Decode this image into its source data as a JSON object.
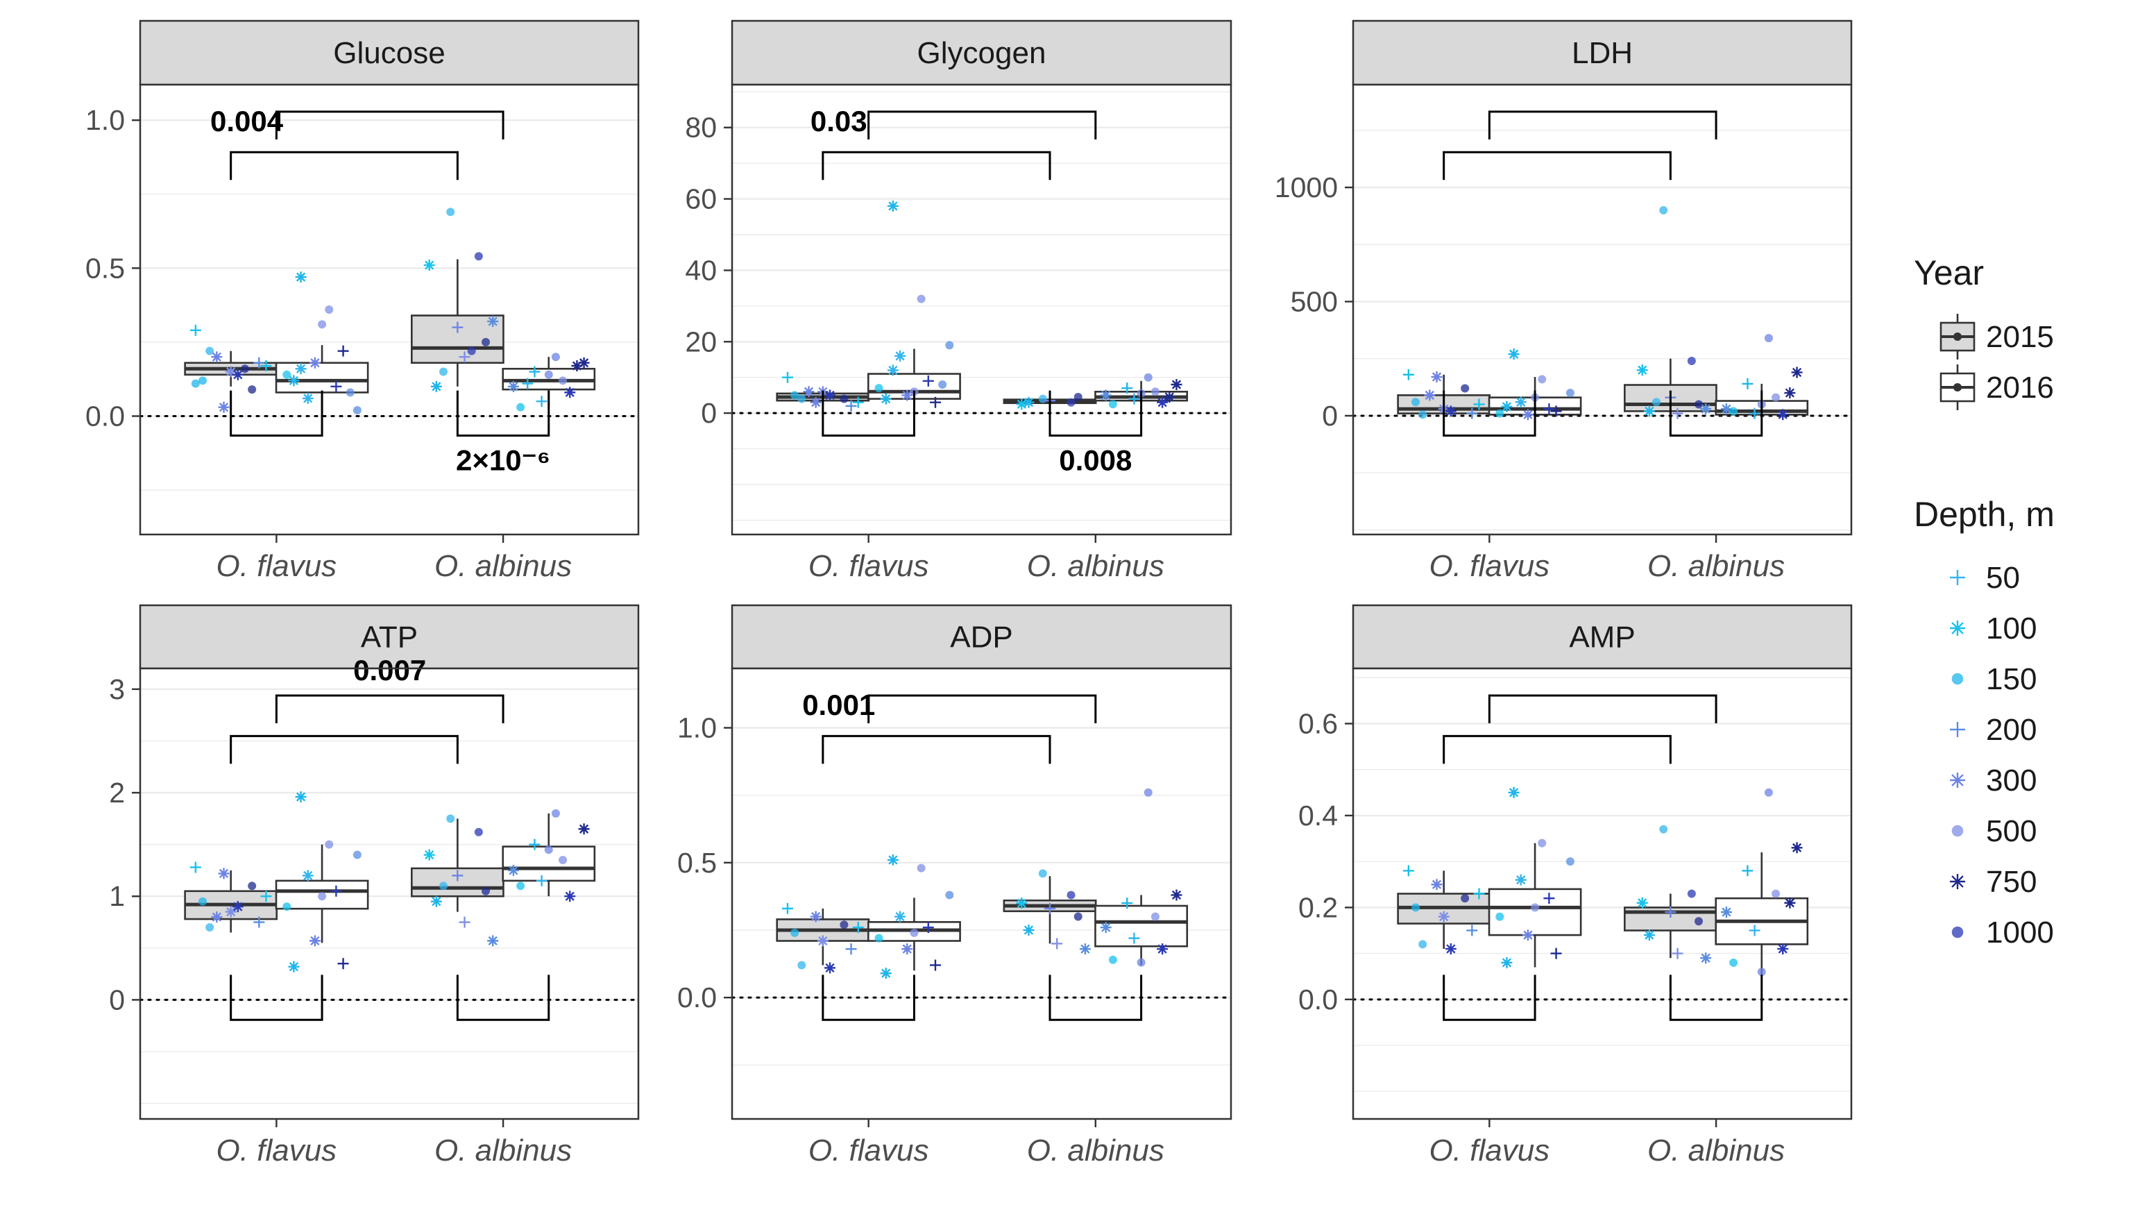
{
  "chart_data": [
    {
      "type": "box",
      "title": "Glucose",
      "categories": [
        "O. flavus",
        "O. albinus"
      ],
      "yticks": [
        0.0,
        0.5,
        1.0
      ],
      "ylim": [
        -0.4,
        1.12
      ],
      "zero_line": 0,
      "boxes": [
        {
          "category": "O. flavus",
          "year": "2015",
          "q1": 0.14,
          "median": 0.16,
          "q3": 0.18,
          "lower": 0.1,
          "upper": 0.22
        },
        {
          "category": "O. flavus",
          "year": "2016",
          "q1": 0.08,
          "median": 0.12,
          "q3": 0.18,
          "lower": 0.02,
          "upper": 0.24
        },
        {
          "category": "O. albinus",
          "year": "2015",
          "q1": 0.18,
          "median": 0.23,
          "q3": 0.34,
          "lower": 0.1,
          "upper": 0.53
        },
        {
          "category": "O. albinus",
          "year": "2016",
          "q1": 0.09,
          "median": 0.12,
          "q3": 0.16,
          "lower": 0.03,
          "upper": 0.2
        }
      ],
      "points": [
        {
          "category": "O. flavus",
          "year": "2015",
          "values": [
            0.29,
            0.03,
            0.09,
            0.12,
            0.15,
            0.18,
            0.22,
            0.14,
            0.17,
            0.2,
            0.16,
            0.11
          ]
        },
        {
          "category": "O. flavus",
          "year": "2016",
          "values": [
            0.47,
            0.36,
            0.02,
            0.06,
            0.1,
            0.14,
            0.18,
            0.22,
            0.12,
            0.31,
            0.08,
            0.16
          ]
        },
        {
          "category": "O. albinus",
          "year": "2015",
          "values": [
            0.69,
            0.54,
            0.51,
            0.3,
            0.25,
            0.1,
            0.2,
            0.32,
            0.15,
            0.22
          ]
        },
        {
          "category": "O. albinus",
          "year": "2016",
          "values": [
            0.2,
            0.18,
            0.15,
            0.12,
            0.1,
            0.05,
            0.08,
            0.03,
            0.14,
            0.17,
            0.11
          ]
        }
      ],
      "brackets": [
        {
          "from": "O. flavus 2015",
          "to": "O. albinus 2015",
          "label": "0.004"
        },
        {
          "from": "O. flavus",
          "to": "O. albinus",
          "label": ""
        },
        {
          "from": "O. flavus 2015",
          "to": "O. flavus 2016",
          "label": ""
        },
        {
          "from": "O. albinus 2015",
          "to": "O. albinus 2016",
          "label": "2×10⁻⁶"
        }
      ]
    },
    {
      "type": "box",
      "title": "Glycogen",
      "categories": [
        "O. flavus",
        "O. albinus"
      ],
      "yticks": [
        0,
        20,
        40,
        60,
        80
      ],
      "ylim": [
        -34,
        92
      ],
      "zero_line": 0,
      "boxes": [
        {
          "category": "O. flavus",
          "year": "2015",
          "q1": 3.5,
          "median": 4.5,
          "q3": 5.5,
          "lower": 2.5,
          "upper": 7
        },
        {
          "category": "O. flavus",
          "year": "2016",
          "q1": 4,
          "median": 6,
          "q3": 11,
          "lower": 2,
          "upper": 18
        },
        {
          "category": "O. albinus",
          "year": "2015",
          "q1": 2.8,
          "median": 3.2,
          "q3": 3.8,
          "lower": 2.2,
          "upper": 4.5
        },
        {
          "category": "O. albinus",
          "year": "2016",
          "q1": 3.5,
          "median": 4.5,
          "q3": 6,
          "lower": 2.5,
          "upper": 9
        }
      ],
      "points": [
        {
          "category": "O. flavus",
          "year": "2015",
          "values": [
            10,
            3,
            4,
            5,
            6,
            2,
            4,
            5,
            3,
            6
          ]
        },
        {
          "category": "O. flavus",
          "year": "2016",
          "values": [
            58,
            32,
            19,
            16,
            9,
            7,
            5,
            3,
            4,
            6,
            8,
            12
          ]
        },
        {
          "category": "O. albinus",
          "year": "2015",
          "values": [
            4,
            3,
            2.5,
            3.5,
            4.5,
            3
          ]
        },
        {
          "category": "O. albinus",
          "year": "2016",
          "values": [
            10,
            8,
            7,
            6,
            5,
            4,
            3,
            2.5,
            5.5,
            4.5
          ]
        }
      ],
      "brackets": [
        {
          "from": "O. flavus 2015",
          "to": "O. albinus 2015",
          "label": "0.03"
        },
        {
          "from": "O. flavus",
          "to": "O. albinus",
          "label": ""
        },
        {
          "from": "O. flavus 2015",
          "to": "O. flavus 2016",
          "label": ""
        },
        {
          "from": "O. albinus 2015",
          "to": "O. albinus 2016",
          "label": "0.008"
        }
      ]
    },
    {
      "type": "box",
      "title": "LDH",
      "categories": [
        "O. flavus",
        "O. albinus"
      ],
      "yticks": [
        0,
        500,
        1000
      ],
      "ylim": [
        -520,
        1450
      ],
      "zero_line": 0,
      "boxes": [
        {
          "category": "O. flavus",
          "year": "2015",
          "q1": 10,
          "median": 30,
          "q3": 90,
          "lower": 0,
          "upper": 180
        },
        {
          "category": "O. flavus",
          "year": "2016",
          "q1": 5,
          "median": 30,
          "q3": 80,
          "lower": 0,
          "upper": 170
        },
        {
          "category": "O. albinus",
          "year": "2015",
          "q1": 20,
          "median": 50,
          "q3": 135,
          "lower": 0,
          "upper": 250
        },
        {
          "category": "O. albinus",
          "year": "2016",
          "q1": 5,
          "median": 20,
          "q3": 65,
          "lower": 0,
          "upper": 140
        }
      ],
      "points": [
        {
          "category": "O. flavus",
          "year": "2015",
          "values": [
            180,
            170,
            120,
            60,
            30,
            10,
            5,
            20,
            50,
            90
          ]
        },
        {
          "category": "O. flavus",
          "year": "2016",
          "values": [
            270,
            160,
            100,
            60,
            30,
            10,
            5,
            20,
            40,
            80
          ]
        },
        {
          "category": "O. albinus",
          "year": "2015",
          "values": [
            900,
            240,
            200,
            80,
            50,
            20,
            10,
            30,
            60
          ]
        },
        {
          "category": "O. albinus",
          "year": "2016",
          "values": [
            340,
            190,
            140,
            80,
            30,
            10,
            5,
            20,
            50,
            100
          ]
        }
      ],
      "brackets": [
        {
          "from": "O. flavus 2015",
          "to": "O. albinus 2015",
          "label": ""
        },
        {
          "from": "O. flavus",
          "to": "O. albinus",
          "label": ""
        },
        {
          "from": "O. flavus 2015",
          "to": "O. flavus 2016",
          "label": ""
        },
        {
          "from": "O. albinus 2015",
          "to": "O. albinus 2016",
          "label": ""
        }
      ]
    },
    {
      "type": "box",
      "title": "ATP",
      "categories": [
        "O. flavus",
        "O. albinus"
      ],
      "yticks": [
        0,
        1,
        2,
        3
      ],
      "ylim": [
        -1.15,
        3.2
      ],
      "zero_line": 0,
      "boxes": [
        {
          "category": "O. flavus",
          "year": "2015",
          "q1": 0.78,
          "median": 0.92,
          "q3": 1.05,
          "lower": 0.65,
          "upper": 1.25
        },
        {
          "category": "O. flavus",
          "year": "2016",
          "q1": 0.88,
          "median": 1.05,
          "q3": 1.15,
          "lower": 0.55,
          "upper": 1.5
        },
        {
          "category": "O. albinus",
          "year": "2015",
          "q1": 1.0,
          "median": 1.08,
          "q3": 1.27,
          "lower": 0.85,
          "upper": 1.75
        },
        {
          "category": "O. albinus",
          "year": "2016",
          "q1": 1.15,
          "median": 1.27,
          "q3": 1.48,
          "lower": 1.0,
          "upper": 1.8
        }
      ],
      "points": [
        {
          "category": "O. flavus",
          "year": "2015",
          "values": [
            1.28,
            1.22,
            1.1,
            0.95,
            0.85,
            0.75,
            0.7,
            0.9,
            1.0,
            0.8
          ]
        },
        {
          "category": "O. flavus",
          "year": "2016",
          "values": [
            1.96,
            1.5,
            1.4,
            1.2,
            1.05,
            0.9,
            0.57,
            0.35,
            0.32,
            1.0
          ]
        },
        {
          "category": "O. albinus",
          "year": "2015",
          "values": [
            1.75,
            1.62,
            1.4,
            1.2,
            1.05,
            0.95,
            0.75,
            0.57,
            1.1
          ]
        },
        {
          "category": "O. albinus",
          "year": "2016",
          "values": [
            1.8,
            1.65,
            1.5,
            1.35,
            1.25,
            1.15,
            1.0,
            1.1,
            1.45
          ]
        }
      ],
      "brackets": [
        {
          "from": "O. flavus 2015",
          "to": "O. albinus 2015",
          "label": ""
        },
        {
          "from": "O. flavus",
          "to": "O. albinus",
          "label": "0.007"
        },
        {
          "from": "O. flavus 2015",
          "to": "O. flavus 2016",
          "label": ""
        },
        {
          "from": "O. albinus 2015",
          "to": "O. albinus 2016",
          "label": ""
        }
      ]
    },
    {
      "type": "box",
      "title": "ADP",
      "categories": [
        "O. flavus",
        "O. albinus"
      ],
      "yticks": [
        0.0,
        0.5,
        1.0
      ],
      "ylim": [
        -0.45,
        1.22
      ],
      "zero_line": 0,
      "boxes": [
        {
          "category": "O. flavus",
          "year": "2015",
          "q1": 0.21,
          "median": 0.25,
          "q3": 0.29,
          "lower": 0.12,
          "upper": 0.33
        },
        {
          "category": "O. flavus",
          "year": "2016",
          "q1": 0.21,
          "median": 0.25,
          "q3": 0.28,
          "lower": 0.1,
          "upper": 0.37
        },
        {
          "category": "O. albinus",
          "year": "2015",
          "q1": 0.32,
          "median": 0.34,
          "q3": 0.36,
          "lower": 0.2,
          "upper": 0.45
        },
        {
          "category": "O. albinus",
          "year": "2016",
          "q1": 0.19,
          "median": 0.28,
          "q3": 0.34,
          "lower": 0.12,
          "upper": 0.38
        }
      ],
      "points": [
        {
          "category": "O. flavus",
          "year": "2015",
          "values": [
            0.33,
            0.3,
            0.27,
            0.24,
            0.21,
            0.18,
            0.12,
            0.11,
            0.26
          ]
        },
        {
          "category": "O. flavus",
          "year": "2016",
          "values": [
            0.51,
            0.48,
            0.38,
            0.3,
            0.26,
            0.22,
            0.18,
            0.12,
            0.09,
            0.24
          ]
        },
        {
          "category": "O. albinus",
          "year": "2015",
          "values": [
            0.46,
            0.38,
            0.35,
            0.33,
            0.3,
            0.25,
            0.2,
            0.18
          ]
        },
        {
          "category": "O. albinus",
          "year": "2016",
          "values": [
            0.76,
            0.38,
            0.35,
            0.3,
            0.26,
            0.22,
            0.18,
            0.14,
            0.13
          ]
        }
      ],
      "brackets": [
        {
          "from": "O. flavus 2015",
          "to": "O. albinus 2015",
          "label": "0.001"
        },
        {
          "from": "O. flavus",
          "to": "O. albinus",
          "label": ""
        },
        {
          "from": "O. flavus 2015",
          "to": "O. flavus 2016",
          "label": ""
        },
        {
          "from": "O. albinus 2015",
          "to": "O. albinus 2016",
          "label": ""
        }
      ]
    },
    {
      "type": "box",
      "title": "AMP",
      "categories": [
        "O. flavus",
        "O. albinus"
      ],
      "yticks": [
        0.0,
        0.2,
        0.4,
        0.6
      ],
      "ylim": [
        -0.26,
        0.72
      ],
      "zero_line": 0,
      "boxes": [
        {
          "category": "O. flavus",
          "year": "2015",
          "q1": 0.165,
          "median": 0.2,
          "q3": 0.23,
          "lower": 0.11,
          "upper": 0.28
        },
        {
          "category": "O. flavus",
          "year": "2016",
          "q1": 0.14,
          "median": 0.2,
          "q3": 0.24,
          "lower": 0.07,
          "upper": 0.34
        },
        {
          "category": "O. albinus",
          "year": "2015",
          "q1": 0.15,
          "median": 0.19,
          "q3": 0.2,
          "lower": 0.09,
          "upper": 0.23
        },
        {
          "category": "O. albinus",
          "year": "2016",
          "q1": 0.12,
          "median": 0.17,
          "q3": 0.22,
          "lower": 0.05,
          "upper": 0.32
        }
      ],
      "points": [
        {
          "category": "O. flavus",
          "year": "2015",
          "values": [
            0.28,
            0.25,
            0.22,
            0.2,
            0.18,
            0.15,
            0.12,
            0.11,
            0.23
          ]
        },
        {
          "category": "O. flavus",
          "year": "2016",
          "values": [
            0.45,
            0.34,
            0.3,
            0.26,
            0.22,
            0.18,
            0.14,
            0.1,
            0.08,
            0.2
          ]
        },
        {
          "category": "O. albinus",
          "year": "2015",
          "values": [
            0.37,
            0.23,
            0.21,
            0.19,
            0.17,
            0.14,
            0.1,
            0.09
          ]
        },
        {
          "category": "O. albinus",
          "year": "2016",
          "values": [
            0.45,
            0.33,
            0.28,
            0.23,
            0.19,
            0.15,
            0.11,
            0.08,
            0.06,
            0.21
          ]
        }
      ],
      "brackets": [
        {
          "from": "O. flavus 2015",
          "to": "O. albinus 2015",
          "label": ""
        },
        {
          "from": "O. flavus",
          "to": "O. albinus",
          "label": ""
        },
        {
          "from": "O. flavus 2015",
          "to": "O. flavus 2016",
          "label": ""
        },
        {
          "from": "O. albinus 2015",
          "to": "O. albinus 2016",
          "label": ""
        }
      ]
    }
  ],
  "legend": {
    "year_title": "Year",
    "years": [
      {
        "label": "2015",
        "fill": "#d9d9d9"
      },
      {
        "label": "2016",
        "fill": "#ffffff"
      }
    ],
    "depth_title": "Depth, m",
    "depths": [
      {
        "label": "50",
        "shape": "plus",
        "color": "#33b5ee"
      },
      {
        "label": "100",
        "shape": "asterisk",
        "color": "#17c2ec"
      },
      {
        "label": "150",
        "shape": "circle",
        "color": "#1fb6ea"
      },
      {
        "label": "200",
        "shape": "plus",
        "color": "#5a8ee0"
      },
      {
        "label": "300",
        "shape": "asterisk",
        "color": "#6d83e4"
      },
      {
        "label": "500",
        "shape": "circle",
        "color": "#7f8fe6"
      },
      {
        "label": "750",
        "shape": "asterisk",
        "color": "#1f2a8e"
      },
      {
        "label": "1000",
        "shape": "circle",
        "color": "#2b3ab4"
      }
    ]
  },
  "colors": {
    "strip_fill": "#d9d9d9",
    "box_2015": "#d9d9d9",
    "box_2016": "#ffffff",
    "grid": "#ebebeb"
  }
}
